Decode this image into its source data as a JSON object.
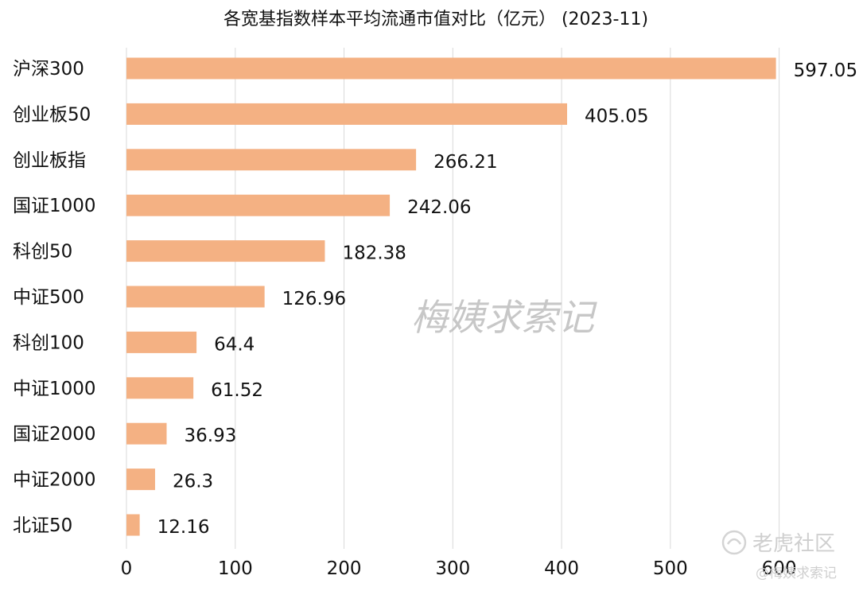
{
  "chart_data": {
    "type": "bar",
    "orientation": "horizontal",
    "title": "各宽基指数样本平均流通市值对比（亿元）  (2023-11)",
    "categories": [
      "沪深300",
      "创业板50",
      "创业板指",
      "国证1000",
      "科创50",
      "中证500",
      "科创100",
      "中证1000",
      "国证2000",
      "中证2000",
      "北证50"
    ],
    "values": [
      597.05,
      405.05,
      266.21,
      242.06,
      182.38,
      126.96,
      64.4,
      61.52,
      36.93,
      26.3,
      12.16
    ],
    "value_labels": [
      "597.05",
      "405.05",
      "266.21",
      "242.06",
      "182.38",
      "126.96",
      "64.4",
      "61.52",
      "36.93",
      "26.3",
      "12.16"
    ],
    "xlim": [
      0,
      600
    ],
    "xticks": [
      0,
      100,
      200,
      300,
      400,
      500,
      600
    ],
    "xlabel": "",
    "ylabel": "",
    "grid": "vertical",
    "legend": "none",
    "bar_color": "#F4B183"
  },
  "watermarks": {
    "center": "梅姨求索记",
    "corner_brand": "老虎社区",
    "corner_author": "@梅姨求索记"
  }
}
